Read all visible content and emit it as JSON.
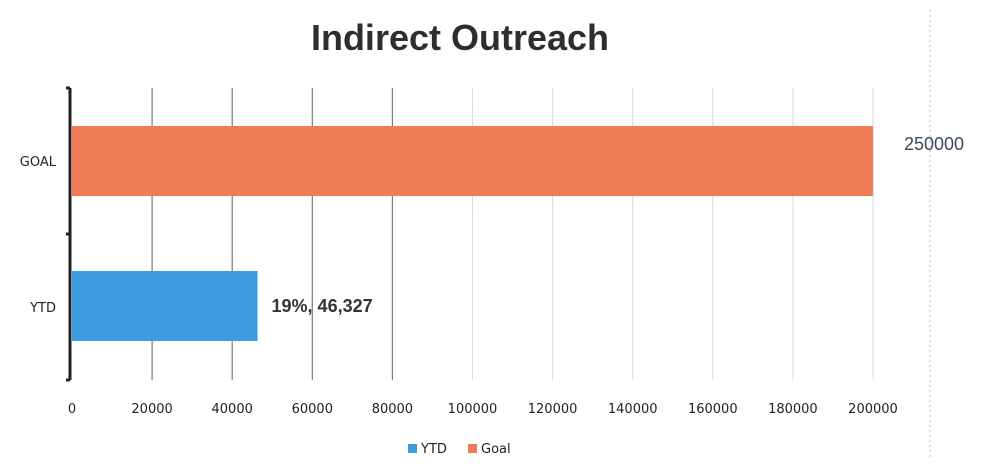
{
  "chart_data": {
    "type": "bar",
    "orientation": "horizontal",
    "title": "Indirect Outreach",
    "categories": [
      "GOAL",
      "YTD"
    ],
    "series": [
      {
        "name": "YTD",
        "category": "YTD",
        "value": 46327,
        "color": "#3d9be0",
        "data_label": "19%, 46,327"
      },
      {
        "name": "Goal",
        "category": "GOAL",
        "value": 200000,
        "color": "#ef7c55",
        "data_label": ""
      }
    ],
    "xlim": [
      0,
      200000
    ],
    "x_ticks": [
      "0",
      "20000",
      "40000",
      "60000",
      "80000",
      "100000",
      "120000",
      "140000",
      "160000",
      "180000",
      "200000"
    ],
    "outside_label": "250000",
    "legend": {
      "position": "bottom",
      "entries": [
        "YTD",
        "Goal"
      ]
    },
    "grid": true
  }
}
